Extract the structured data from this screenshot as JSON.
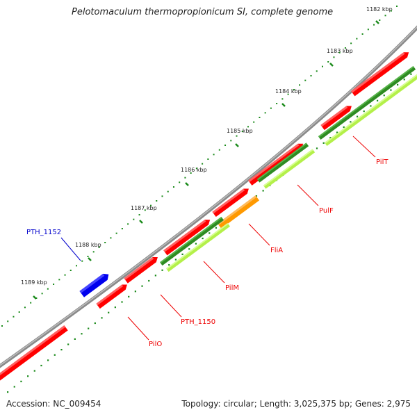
{
  "title": "Pelotomaculum thermopropionicum SI, complete genome",
  "footer": {
    "accession": "Accession: NC_009454",
    "stats": "Topology: circular; Length: 3,025,375 bp; Genes: 2,975"
  },
  "colors": {
    "backbone": "#808080",
    "cds": "#ff0000",
    "cds_highlight": "#ff6d6d",
    "blue_feature": "#0000ee",
    "orange_feature": "#ff9900",
    "dark_green": "#2e8b22",
    "light_green": "#b4f04a",
    "tick_green": "#1a8a1a",
    "label_red": "#ee0000",
    "label_blue": "#0000cc"
  },
  "ruler": {
    "ticks": [
      {
        "label": "1182 kbp"
      },
      {
        "label": "1183 kbp"
      },
      {
        "label": "1184 kbp"
      },
      {
        "label": "1185 kbp"
      },
      {
        "label": "1186 kbp"
      },
      {
        "label": "1187 kbp"
      },
      {
        "label": "1188 kbp"
      },
      {
        "label": "1189 kbp"
      }
    ]
  },
  "gene_labels": [
    {
      "name": "PilT",
      "color": "red"
    },
    {
      "name": "PulF",
      "color": "red"
    },
    {
      "name": "FliA",
      "color": "red"
    },
    {
      "name": "PilM",
      "color": "red"
    },
    {
      "name": "PTH_1150",
      "color": "red"
    },
    {
      "name": "PilO",
      "color": "red"
    },
    {
      "name": "PTH_1152",
      "color": "blue"
    }
  ]
}
